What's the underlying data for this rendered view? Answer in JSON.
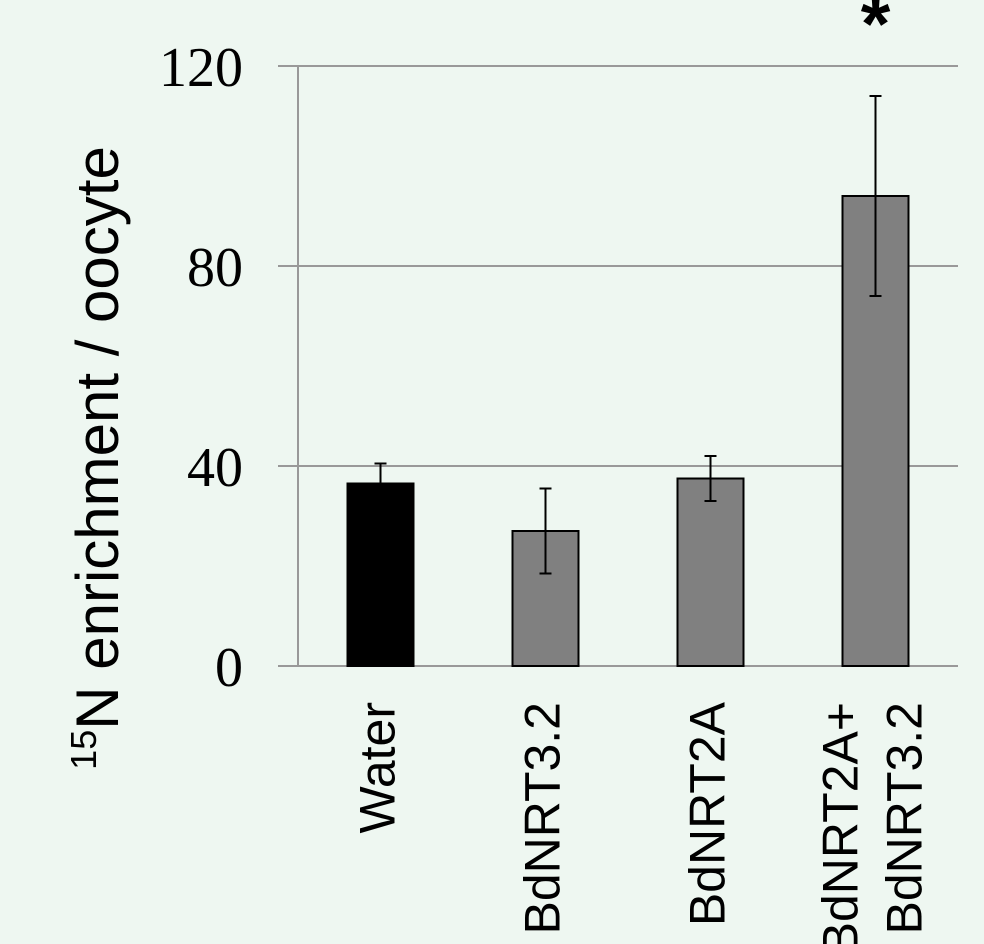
{
  "chart_data": {
    "type": "bar",
    "title": "",
    "ylabel_superscript": "15",
    "ylabel": "N enrichment / oocyte",
    "xlabel": "",
    "ylim": [
      0,
      120
    ],
    "yticks": [
      0,
      40,
      80,
      120
    ],
    "grid": true,
    "categories": [
      [
        "Water"
      ],
      [
        "BdNRT3.2"
      ],
      [
        "BdNRT2A"
      ],
      [
        "BdNRT2A+",
        "BdNRT3.2"
      ]
    ],
    "values": [
      36.5,
      27,
      37.5,
      94
    ],
    "errors": [
      4,
      8.5,
      4.5,
      20
    ],
    "significance": [
      "",
      "",
      "",
      "*"
    ],
    "colors": {
      "control": "#000000",
      "treatment": "#808080",
      "grid": "#999999",
      "background": "#eef7f1"
    },
    "bar_colors": [
      "control",
      "treatment",
      "treatment",
      "treatment"
    ]
  }
}
